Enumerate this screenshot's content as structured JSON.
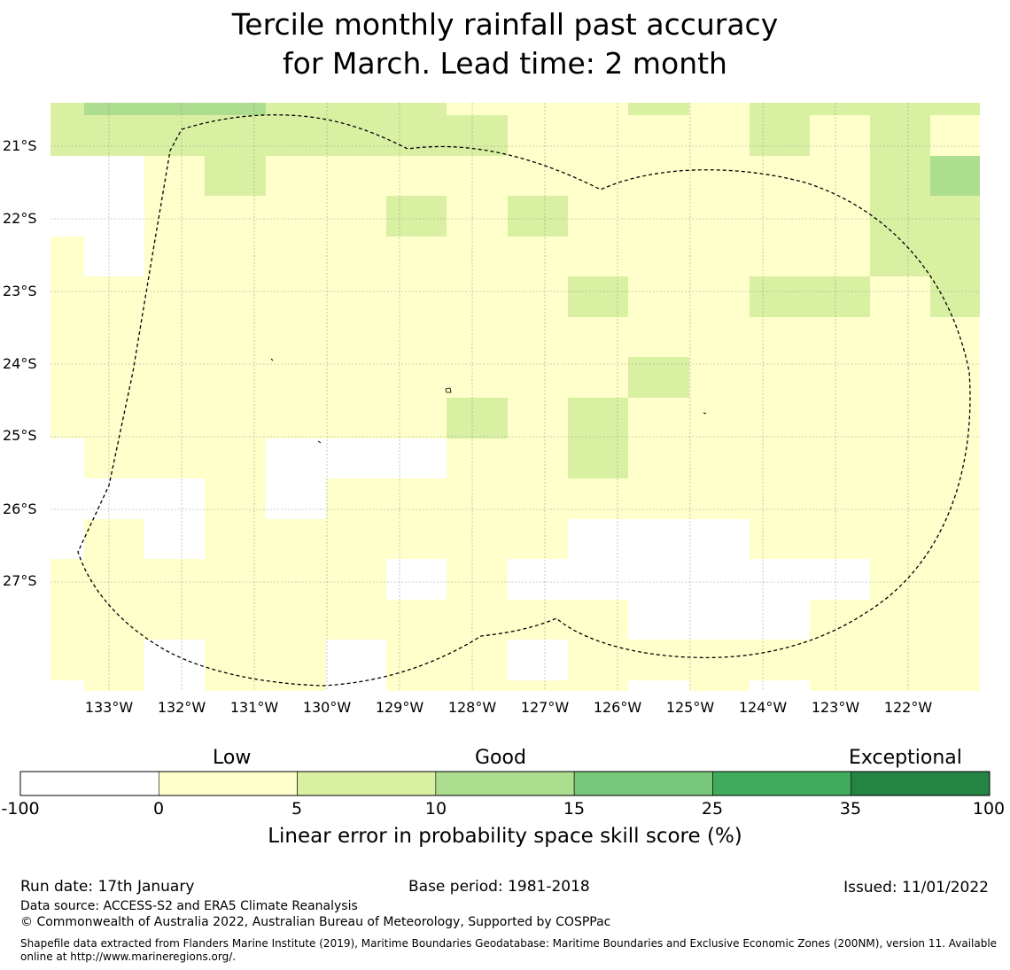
{
  "title": {
    "line1": "Tercile monthly rainfall past accuracy",
    "line2": "for March. Lead time: 2 month"
  },
  "map": {
    "lat_labels": [
      "21°S",
      "22°S",
      "23°S",
      "24°S",
      "25°S",
      "26°S",
      "27°S"
    ],
    "lon_labels": [
      "133°W",
      "132°W",
      "131°W",
      "130°W",
      "129°W",
      "128°W",
      "127°W",
      "126°W",
      "125°W",
      "124°W",
      "123°W",
      "122°W"
    ],
    "cell_colors": {
      "white": "#ffffff",
      "c0": "#ffffcc",
      "c5": "#d9f0a3",
      "c10": "#addd8e"
    }
  },
  "colorbar": {
    "categories": {
      "low": "Low",
      "good": "Good",
      "exceptional": "Exceptional"
    },
    "ticks": [
      "-100",
      "0",
      "5",
      "10",
      "15",
      "25",
      "35",
      "100"
    ],
    "colors": [
      "#ffffff",
      "#ffffcc",
      "#d9f0a3",
      "#addd8e",
      "#78c679",
      "#41ab5d",
      "#238443"
    ],
    "label": "Linear error in probability space skill score (%)"
  },
  "footer": {
    "run_date": "Run date: 17th January",
    "base_period": "Base period: 1981-2018",
    "issued": "Issued: 11/01/2022",
    "data_source": "Data source: ACCESS-S2 and ERA5 Climate Reanalysis",
    "copyright": "© Commonwealth of Australia 2022, Australian Bureau of Meteorology, Supported by COSPPac",
    "shapefile": "Shapefile data extracted from Flanders Marine Institute (2019), Maritime Boundaries Geodatabase: Maritime Boundaries and Exclusive Economic Zones (200NM), version 11. Available online at http://www.marineregions.org/."
  }
}
